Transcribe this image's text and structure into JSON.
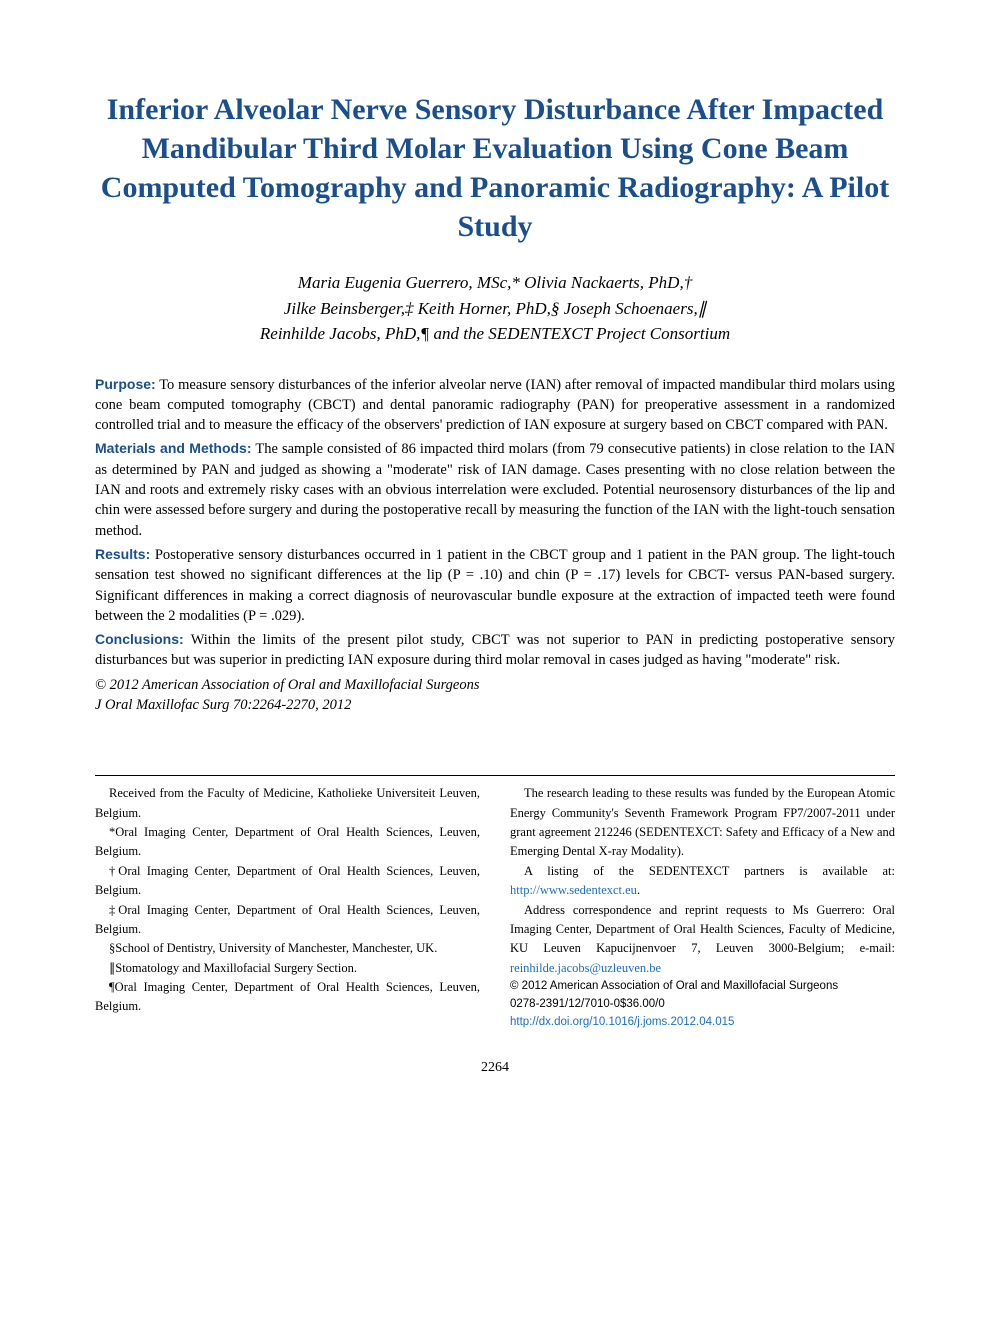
{
  "title": "Inferior Alveolar Nerve Sensory Disturbance After Impacted Mandibular Third Molar Evaluation Using Cone Beam Computed Tomography and Panoramic Radiography: A Pilot Study",
  "authors_line1": "Maria Eugenia Guerrero, MSc,* Olivia Nackaerts, PhD,†",
  "authors_line2": "Jilke Beinsberger,‡ Keith Horner, PhD,§ Joseph Schoenaers,∥",
  "authors_line3": "Reinhilde Jacobs, PhD,¶ and the SEDENTEXCT Project Consortium",
  "abstract": {
    "purpose_label": "Purpose:",
    "purpose_text": " To measure sensory disturbances of the inferior alveolar nerve (IAN) after removal of impacted mandibular third molars using cone beam computed tomography (CBCT) and dental panoramic radiography (PAN) for preoperative assessment in a randomized controlled trial and to measure the efficacy of the observers' prediction of IAN exposure at surgery based on CBCT compared with PAN.",
    "methods_label": "Materials and Methods:",
    "methods_text": " The sample consisted of 86 impacted third molars (from 79 consecutive patients) in close relation to the IAN as determined by PAN and judged as showing a \"moderate\" risk of IAN damage. Cases presenting with no close relation between the IAN and roots and extremely risky cases with an obvious interrelation were excluded. Potential neurosensory disturbances of the lip and chin were assessed before surgery and during the postoperative recall by measuring the function of the IAN with the light-touch sensation method.",
    "results_label": "Results:",
    "results_text": " Postoperative sensory disturbances occurred in 1 patient in the CBCT group and 1 patient in the PAN group. The light-touch sensation test showed no significant differences at the lip (P = .10) and chin (P = .17) levels for CBCT- versus PAN-based surgery. Significant differences in making a correct diagnosis of neurovascular bundle exposure at the extraction of impacted teeth were found between the 2 modalities (P = .029).",
    "conclusions_label": "Conclusions:",
    "conclusions_text": " Within the limits of the present pilot study, CBCT was not superior to PAN in predicting postoperative sensory disturbances but was superior in predicting IAN exposure during third molar removal in cases judged as having \"moderate\" risk."
  },
  "copyright": "© 2012 American Association of Oral and Maxillofacial Surgeons",
  "citation": "J Oral Maxillofac Surg 70:2264-2270, 2012",
  "footer": {
    "left": {
      "received": "Received from the Faculty of Medicine, Katholieke Universiteit Leuven, Belgium.",
      "aff1": "*Oral Imaging Center, Department of Oral Health Sciences, Leuven, Belgium.",
      "aff2": "†Oral Imaging Center, Department of Oral Health Sciences, Leuven, Belgium.",
      "aff3": "‡Oral Imaging Center, Department of Oral Health Sciences, Leuven, Belgium.",
      "aff4": "§School of Dentistry, University of Manchester, Manchester, UK.",
      "aff5": "∥Stomatology and Maxillofacial Surgery Section.",
      "aff6": "¶Oral Imaging Center, Department of Oral Health Sciences, Leuven, Belgium."
    },
    "right": {
      "funding": "The research leading to these results was funded by the European Atomic Energy Community's Seventh Framework Program FP7/2007-2011 under grant agreement 212246 (SEDENTEXCT: Safety and Efficacy of a New and Emerging Dental X-ray Modality).",
      "listing_pre": "A listing of the SEDENTEXCT partners is available at: ",
      "listing_link": "http://www.sedentexct.eu",
      "listing_post": ".",
      "address_pre": "Address correspondence and reprint requests to Ms Guerrero: Oral Imaging Center, Department of Oral Health Sciences, Faculty of Medicine, KU Leuven Kapucijnenvoer 7, Leuven 3000-Belgium; e-mail: ",
      "address_email": "reinhilde.jacobs@uzleuven.be",
      "copyright_small": "© 2012 American Association of Oral and Maxillofacial Surgeons",
      "issn": "0278-2391/12/7010-0$36.00/0",
      "doi": "http://dx.doi.org/10.1016/j.joms.2012.04.015"
    }
  },
  "pagenum": "2264",
  "colors": {
    "heading_blue": "#1a4f8f",
    "link_blue": "#1a6fc4",
    "text": "#000000",
    "background": "#ffffff"
  }
}
